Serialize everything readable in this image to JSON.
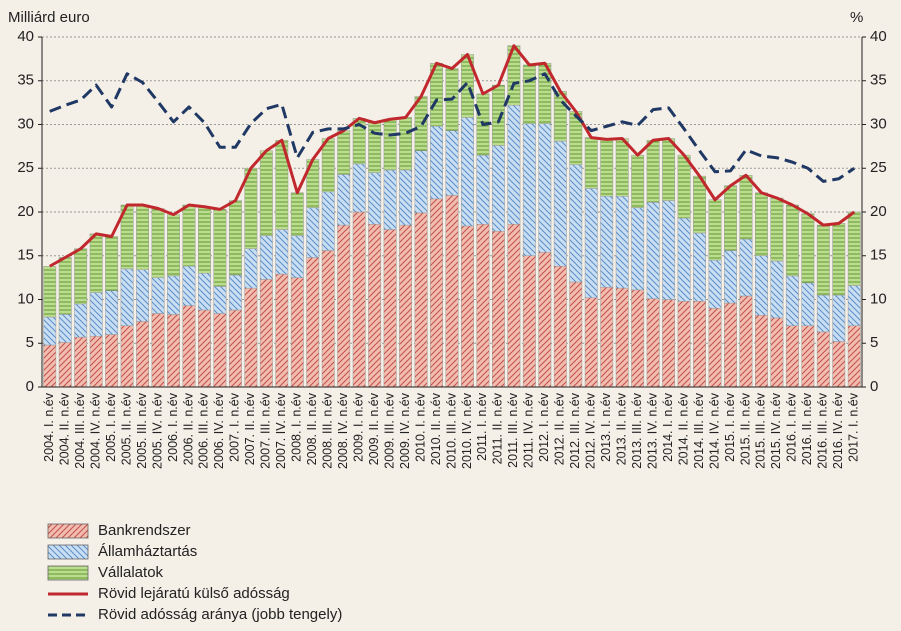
{
  "chart_data": {
    "type": "bar",
    "stacked": true,
    "yaxis_label": "Milliárd euro",
    "y2axis_label": "%",
    "categories": [
      "2004. I. n.év",
      "2004. II. n.év",
      "2004. III. n.év",
      "2004. IV. n.év",
      "2005. I. n.év",
      "2005. II. n.év",
      "2005. III. n.év",
      "2005. IV. n.év",
      "2006. I. n.év",
      "2006. II. n.év",
      "2006. III. n.év",
      "2006. IV. n.év",
      "2007. I. n.év",
      "2007. II. n.év",
      "2007. III. n.év",
      "2007. IV. n.év",
      "2008. I. n.év",
      "2008. II. n.év",
      "2008. III. n.év",
      "2008. IV. n.év",
      "2009. I. n.év",
      "2009. II. n.év",
      "2009. III. n.év",
      "2009. IV. n.év",
      "2010. I. n.év",
      "2010. II. n.év",
      "2010. III. n.év",
      "2010. IV. n.év",
      "2011. I. n.év",
      "2011. II. n.év",
      "2011. III. n.év",
      "2011. IV. n.év",
      "2012. I. n.év",
      "2012. II. n.év",
      "2012. III. n.év",
      "2012. IV. n.év",
      "2013. I. n.év",
      "2013. II. n.év",
      "2013. III. n.év",
      "2013. IV. n.év",
      "2014. I. n.év",
      "2014. II. n.év",
      "2014. III. n.év",
      "2014. IV. n.év",
      "2015. I. n.év",
      "2015. II. n.év",
      "2015. III. n.év",
      "2015. IV. n.év",
      "2016. I. n.év",
      "2016. II. n.év",
      "2016. III. n.év",
      "2016. IV. n.év",
      "2017. I. n.év"
    ],
    "series": [
      {
        "name": "Bankrendszer",
        "type": "bar",
        "color": "#f2bcae",
        "values": [
          4.8,
          5.1,
          5.7,
          5.8,
          6.0,
          7.0,
          7.5,
          8.4,
          8.3,
          9.3,
          8.8,
          8.4,
          8.8,
          11.3,
          12.3,
          12.9,
          12.5,
          14.8,
          15.6,
          18.5,
          20.0,
          18.6,
          18.0,
          18.5,
          19.9,
          21.5,
          21.9,
          18.4,
          18.6,
          17.8,
          18.6,
          15.0,
          15.4,
          13.8,
          12.0,
          10.2,
          11.4,
          11.3,
          11.1,
          10.1,
          10.0,
          9.8,
          9.8,
          9.0,
          9.6,
          10.4,
          8.2,
          7.9,
          7.0,
          7.0,
          6.3,
          5.2,
          7.0
        ]
      },
      {
        "name": "Államháztartás",
        "type": "bar",
        "color": "#c9def2",
        "values": [
          3.2,
          3.2,
          3.8,
          5.0,
          5.0,
          6.5,
          5.9,
          4.1,
          4.4,
          4.5,
          4.2,
          3.1,
          4.0,
          4.5,
          5.0,
          5.1,
          4.8,
          5.7,
          6.7,
          5.8,
          5.5,
          5.9,
          6.8,
          6.3,
          7.1,
          8.3,
          7.4,
          12.4,
          7.9,
          9.8,
          13.6,
          15.1,
          14.7,
          14.3,
          13.4,
          12.5,
          10.4,
          10.5,
          9.4,
          11.0,
          11.3,
          9.5,
          7.8,
          5.5,
          6.0,
          6.5,
          6.8,
          6.5,
          5.7,
          4.9,
          4.2,
          5.3,
          4.6
        ]
      },
      {
        "name": "Vállalatok",
        "type": "bar",
        "color": "#bcdc90",
        "values": [
          5.8,
          6.5,
          6.3,
          6.7,
          6.2,
          7.3,
          7.4,
          7.9,
          7.0,
          7.0,
          7.6,
          8.8,
          8.5,
          9.2,
          9.7,
          10.2,
          4.9,
          5.5,
          6.1,
          5.0,
          5.2,
          5.7,
          5.8,
          6.0,
          6.2,
          7.2,
          7.1,
          7.2,
          7.0,
          6.9,
          6.8,
          6.7,
          6.9,
          5.7,
          6.1,
          5.8,
          6.5,
          6.6,
          6.0,
          7.1,
          7.1,
          7.2,
          6.5,
          6.9,
          7.4,
          7.3,
          7.2,
          7.2,
          8.1,
          7.9,
          8.0,
          8.2,
          8.4
        ]
      },
      {
        "name": "Rövid lejáratú külső adósság",
        "type": "line",
        "color": "#c0282d",
        "values": [
          13.8,
          14.8,
          15.8,
          17.5,
          17.2,
          20.8,
          20.8,
          20.4,
          19.7,
          20.8,
          20.6,
          20.3,
          21.3,
          25.0,
          27.0,
          28.2,
          22.2,
          26.0,
          28.4,
          29.3,
          30.7,
          30.2,
          30.6,
          30.8,
          33.2,
          37.0,
          36.4,
          38.0,
          33.5,
          34.5,
          39.0,
          36.8,
          37.0,
          33.8,
          31.5,
          28.5,
          28.3,
          28.4,
          26.5,
          28.2,
          28.4,
          26.5,
          24.1,
          21.4,
          23.0,
          24.2,
          22.2,
          21.6,
          20.8,
          19.8,
          18.5,
          18.7,
          20.0
        ]
      },
      {
        "name": "Rövid adósság aránya (jobb tengely)",
        "type": "line",
        "dashed": true,
        "axis": "y2",
        "color": "#1f3864",
        "values": [
          31.5,
          32.2,
          32.8,
          34.5,
          32.0,
          35.8,
          34.8,
          32.6,
          30.3,
          32.0,
          30.2,
          27.4,
          27.4,
          30.1,
          31.8,
          32.3,
          26.2,
          29.1,
          29.5,
          29.5,
          30.0,
          29.0,
          28.8,
          29.0,
          29.8,
          32.8,
          32.9,
          34.8,
          30.0,
          30.3,
          34.7,
          35.0,
          35.8,
          32.8,
          31.0,
          29.3,
          29.8,
          30.3,
          29.9,
          31.7,
          31.9,
          29.5,
          27.0,
          24.6,
          24.7,
          27.1,
          26.4,
          26.2,
          25.7,
          25.0,
          23.5,
          23.8,
          25.0
        ]
      }
    ],
    "ylim": [
      0,
      40
    ],
    "yticks": [
      0,
      5,
      10,
      15,
      20,
      25,
      30,
      35,
      40
    ],
    "y2lim": [
      0,
      40
    ],
    "y2ticks": [
      0,
      5,
      10,
      15,
      20,
      25,
      30,
      35,
      40
    ],
    "grid": true,
    "legend": "bottom"
  }
}
